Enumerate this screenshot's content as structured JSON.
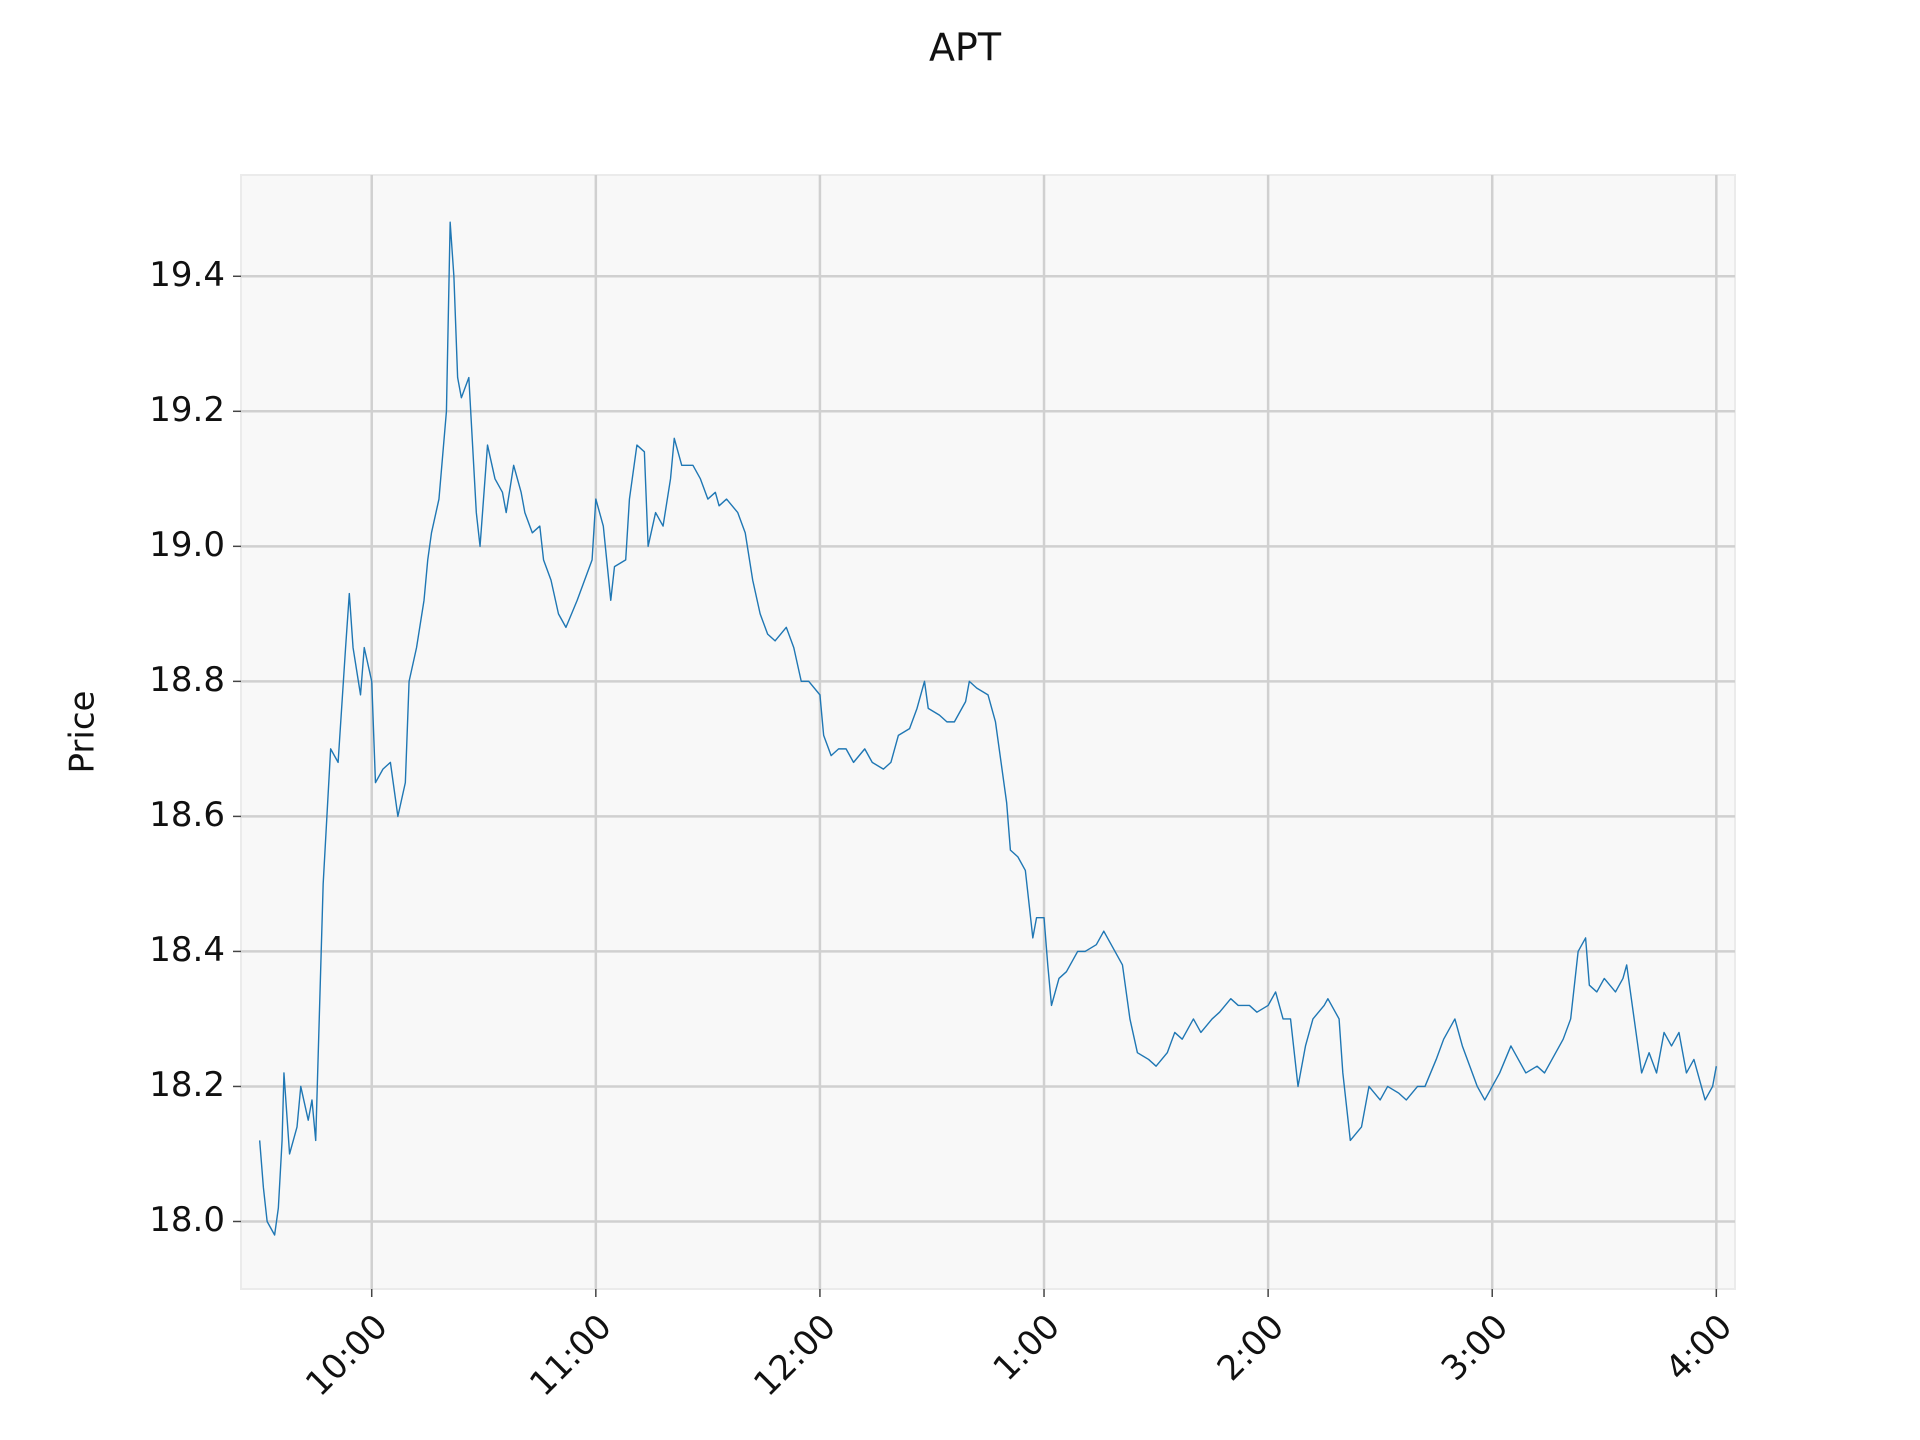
{
  "chart_data": {
    "type": "line",
    "title": "APT",
    "ylabel": "Price",
    "color": "#1f77b4",
    "grid": true,
    "xlim": [
      565,
      965
    ],
    "ylim": [
      17.9,
      19.55
    ],
    "xticks": [
      {
        "value": 600,
        "label": "10:00"
      },
      {
        "value": 660,
        "label": "11:00"
      },
      {
        "value": 720,
        "label": "12:00"
      },
      {
        "value": 780,
        "label": "1:00"
      },
      {
        "value": 840,
        "label": "2:00"
      },
      {
        "value": 900,
        "label": "3:00"
      },
      {
        "value": 960,
        "label": "4:00"
      }
    ],
    "yticks": [
      {
        "value": 18,
        "label": "18.0"
      },
      18.2,
      18.4,
      18.6,
      18.8,
      {
        "value": 19,
        "label": "19.0"
      },
      19.2,
      19.4
    ],
    "x": [
      570,
      571,
      572,
      574,
      575,
      576,
      576.5,
      578,
      580,
      581,
      583,
      584,
      585,
      587,
      588,
      589,
      591,
      593,
      594,
      595,
      597,
      598,
      600,
      601,
      603,
      605,
      607,
      609,
      610,
      612,
      614,
      615,
      616,
      618,
      620,
      621,
      622,
      623,
      624,
      626,
      628,
      629,
      631,
      633,
      635,
      636,
      638,
      640,
      641,
      643,
      645,
      646,
      648,
      650,
      652,
      655,
      659,
      660,
      662,
      664,
      665,
      668,
      669,
      671,
      673,
      674,
      676,
      678,
      680,
      681,
      683,
      686,
      688,
      690,
      692,
      693,
      695,
      698,
      700,
      702,
      704,
      706,
      708,
      711,
      713,
      715,
      717,
      720,
      721,
      723,
      725,
      727,
      729,
      732,
      734,
      737,
      739,
      741,
      744,
      746,
      748,
      749,
      752,
      754,
      756,
      759,
      760,
      762,
      765,
      767,
      768,
      770,
      771,
      773,
      775,
      777,
      778,
      780,
      781,
      782,
      784,
      786,
      789,
      791,
      794,
      796,
      799,
      801,
      803,
      805,
      808,
      810,
      813,
      815,
      817,
      820,
      822,
      825,
      827,
      830,
      832,
      835,
      837,
      840,
      842,
      844,
      846,
      848,
      850,
      852,
      855,
      856,
      859,
      860,
      862,
      865,
      867,
      870,
      872,
      875,
      877,
      880,
      882,
      885,
      887,
      890,
      892,
      894,
      896,
      898,
      900,
      902,
      905,
      907,
      909,
      912,
      914,
      917,
      919,
      921,
      923,
      925,
      926,
      928,
      930,
      933,
      935,
      936,
      938,
      940,
      942,
      944,
      946,
      948,
      950,
      952,
      954,
      956,
      957,
      959,
      960
    ],
    "values": [
      18.12,
      18.05,
      18.0,
      17.98,
      18.02,
      18.12,
      18.22,
      18.1,
      18.14,
      18.2,
      18.15,
      18.18,
      18.12,
      18.5,
      18.6,
      18.7,
      18.68,
      18.85,
      18.93,
      18.85,
      18.78,
      18.85,
      18.8,
      18.65,
      18.67,
      18.68,
      18.6,
      18.65,
      18.8,
      18.85,
      18.92,
      18.98,
      19.02,
      19.07,
      19.2,
      19.48,
      19.4,
      19.25,
      19.22,
      19.25,
      19.05,
      19.0,
      19.15,
      19.1,
      19.08,
      19.05,
      19.12,
      19.08,
      19.05,
      19.02,
      19.03,
      18.98,
      18.95,
      18.9,
      18.88,
      18.92,
      18.98,
      19.07,
      19.03,
      18.92,
      18.97,
      18.98,
      19.07,
      19.15,
      19.14,
      19.0,
      19.05,
      19.03,
      19.1,
      19.16,
      19.12,
      19.12,
      19.1,
      19.07,
      19.08,
      19.06,
      19.07,
      19.05,
      19.02,
      18.95,
      18.9,
      18.87,
      18.86,
      18.88,
      18.85,
      18.8,
      18.8,
      18.78,
      18.72,
      18.69,
      18.7,
      18.7,
      18.68,
      18.7,
      18.68,
      18.67,
      18.68,
      18.72,
      18.73,
      18.76,
      18.8,
      18.76,
      18.75,
      18.74,
      18.74,
      18.77,
      18.8,
      18.79,
      18.78,
      18.74,
      18.7,
      18.62,
      18.55,
      18.54,
      18.52,
      18.42,
      18.45,
      18.45,
      18.38,
      18.32,
      18.36,
      18.37,
      18.4,
      18.4,
      18.41,
      18.43,
      18.4,
      18.38,
      18.3,
      18.25,
      18.24,
      18.23,
      18.25,
      18.28,
      18.27,
      18.3,
      18.28,
      18.3,
      18.31,
      18.33,
      18.32,
      18.32,
      18.31,
      18.32,
      18.34,
      18.3,
      18.3,
      18.2,
      18.26,
      18.3,
      18.32,
      18.33,
      18.3,
      18.22,
      18.12,
      18.14,
      18.2,
      18.18,
      18.2,
      18.19,
      18.18,
      18.2,
      18.2,
      18.24,
      18.27,
      18.3,
      18.26,
      18.23,
      18.2,
      18.18,
      18.2,
      18.22,
      18.26,
      18.24,
      18.22,
      18.23,
      18.22,
      18.25,
      18.27,
      18.3,
      18.4,
      18.42,
      18.35,
      18.34,
      18.36,
      18.34,
      18.36,
      18.38,
      18.3,
      18.22,
      18.25,
      18.22,
      18.28,
      18.26,
      18.28,
      18.22,
      18.24,
      18.2,
      18.18,
      18.2,
      18.23
    ]
  }
}
